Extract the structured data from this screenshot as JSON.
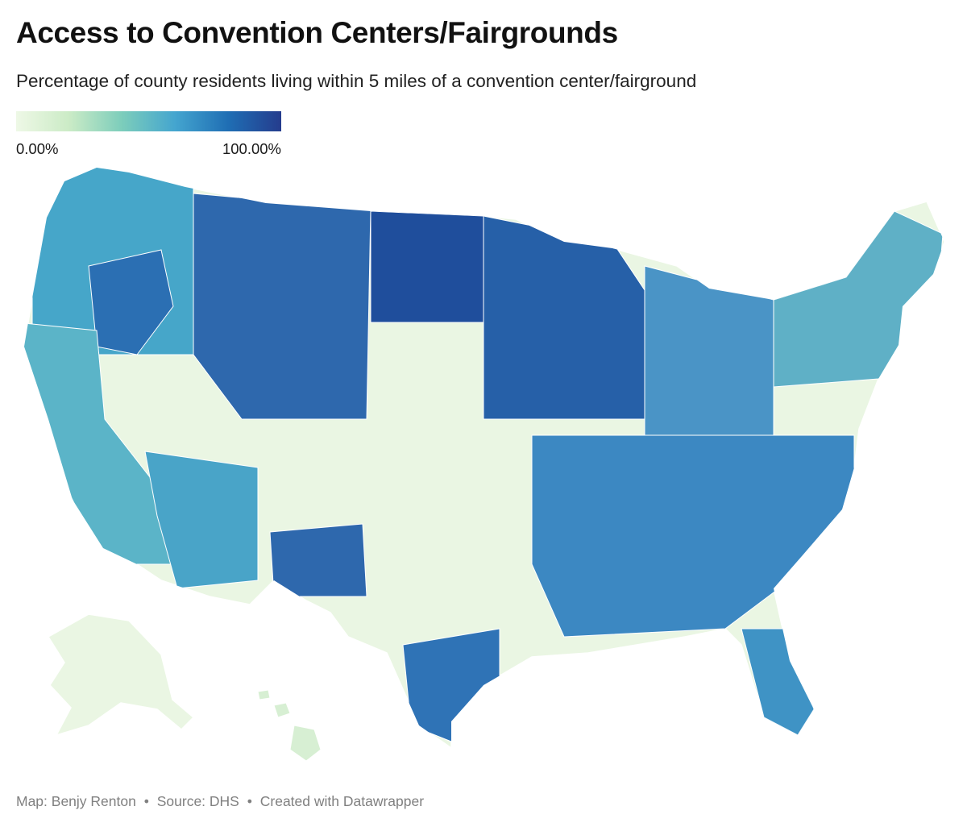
{
  "title": "Access to Convention Centers/Fairgrounds",
  "subtitle": "Percentage of county residents living within 5 miles of a convention center/fairground",
  "legend": {
    "min_label": "0.00%",
    "max_label": "100.00%",
    "colors": [
      "#eef8e6",
      "#cbebc6",
      "#7ccdbb",
      "#44a5cf",
      "#1f6eb4",
      "#253c8d"
    ]
  },
  "map": {
    "type": "choropleth",
    "geography": "US counties",
    "region_shades": {
      "conus_base": "#eaf6e3",
      "alaska": "#eaf6e3",
      "hawaii": "#d7efd3",
      "northwest": "#46a6c9",
      "northwest_dark": "#2b6fb3",
      "california": "#5bb4c8",
      "nevada_arizona": "#49a4c8",
      "mountain": "#2e68ad",
      "northern_plains": "#1f4e9c",
      "midwest": "#2660a8",
      "great_lakes": "#4a94c6",
      "northeast": "#5fb0c6",
      "south": "#3c88c2",
      "texas_gulf": "#2f73b6",
      "florida": "#3f93c5"
    }
  },
  "footer": {
    "credit": "Map: Benjy Renton",
    "source": "Source: DHS",
    "tool": "Created with Datawrapper",
    "separator": "•"
  }
}
